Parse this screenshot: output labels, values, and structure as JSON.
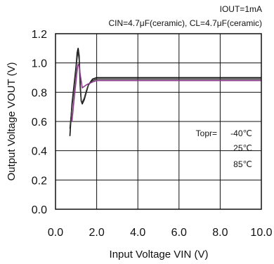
{
  "chart_data": {
    "type": "line",
    "conditions": [
      "IOUT=1mA",
      "CIN=4.7μF(ceramic), CL=4.7μF(ceramic)"
    ],
    "xlabel": "Input Voltage VIN (V)",
    "ylabel": "Output Voltage VOUT (V)",
    "xlim": [
      0,
      10
    ],
    "ylim": [
      0,
      1.2
    ],
    "xticks": [
      "0.0",
      "2.0",
      "4.0",
      "6.0",
      "8.0",
      "10.0"
    ],
    "yticks": [
      "0.0",
      "0.2",
      "0.4",
      "0.6",
      "0.8",
      "1.0",
      "1.2"
    ],
    "grid": true,
    "legend": {
      "title": "Topr=",
      "entries": [
        "-40℃",
        "25℃",
        "85℃"
      ],
      "placement": "right"
    },
    "series": [
      {
        "name": "-40℃",
        "color": "#111111",
        "x": [
          0.7,
          0.8,
          0.9,
          1.0,
          1.05,
          1.1,
          1.15,
          1.2,
          1.25,
          1.3,
          1.4,
          1.5,
          1.6,
          1.8,
          2.0,
          2.5,
          10.0
        ],
        "y": [
          0.5,
          0.72,
          0.85,
          0.98,
          1.07,
          1.1,
          1.05,
          0.85,
          0.74,
          0.72,
          0.75,
          0.8,
          0.85,
          0.89,
          0.9,
          0.9,
          0.9
        ]
      },
      {
        "name": "25℃",
        "color": "#333333",
        "x": [
          0.7,
          0.8,
          0.9,
          1.0,
          1.05,
          1.1,
          1.15,
          1.2,
          1.25,
          1.3,
          1.4,
          1.5,
          1.6,
          1.8,
          2.0,
          2.5,
          10.0
        ],
        "y": [
          0.55,
          0.7,
          0.83,
          0.96,
          1.04,
          1.08,
          1.02,
          0.83,
          0.74,
          0.73,
          0.76,
          0.81,
          0.85,
          0.88,
          0.89,
          0.89,
          0.89
        ]
      },
      {
        "name": "85℃",
        "color": "#8b3a8b",
        "x": [
          0.8,
          0.9,
          1.0,
          1.05,
          1.1,
          1.15,
          1.2,
          1.3,
          1.5,
          1.8,
          2.0,
          2.5,
          10.0
        ],
        "y": [
          0.6,
          0.75,
          0.88,
          0.95,
          0.99,
          0.98,
          0.92,
          0.83,
          0.85,
          0.87,
          0.88,
          0.88,
          0.88
        ]
      }
    ]
  }
}
